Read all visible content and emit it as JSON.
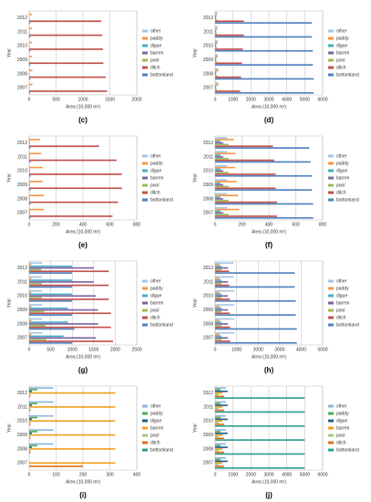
{
  "chart_data": [
    {
      "type": "bar",
      "caption": "(c)",
      "ylabel": "Year",
      "xlabel": "Area (10,000 m²)",
      "categories": [
        "2007",
        "2008",
        "2009",
        "2010",
        "2011",
        "2012"
      ],
      "xlim": [
        0,
        2000
      ],
      "xticks": [
        0,
        500,
        1000,
        1500,
        2000
      ],
      "grid": true,
      "series": [
        {
          "name": "bottomland",
          "color": "#4f81bd",
          "values": [
            20,
            20,
            20,
            20,
            20,
            20
          ]
        },
        {
          "name": "ditch",
          "color": "#c0504d",
          "values": [
            1450,
            1420,
            1380,
            1370,
            1360,
            1340
          ]
        },
        {
          "name": "pool",
          "color": "#9bbb59",
          "values": [
            10,
            10,
            10,
            10,
            10,
            10
          ]
        },
        {
          "name": "barren",
          "color": "#8064a2",
          "values": [
            5,
            5,
            5,
            5,
            5,
            5
          ]
        },
        {
          "name": "digue",
          "color": "#4bacc6",
          "values": [
            5,
            5,
            5,
            5,
            5,
            5
          ]
        },
        {
          "name": "paddy",
          "color": "#f79646",
          "values": [
            60,
            60,
            55,
            55,
            50,
            50
          ]
        },
        {
          "name": "other",
          "color": "#a7c4e5",
          "values": [
            10,
            10,
            10,
            10,
            10,
            10
          ]
        }
      ]
    },
    {
      "type": "bar",
      "caption": "(d)",
      "ylabel": "Year",
      "xlabel": "Area (10,000 m²)",
      "categories": [
        "2007",
        "2008",
        "2009",
        "2010",
        "2011",
        "2012"
      ],
      "xlim": [
        0,
        6000
      ],
      "xticks": [
        0,
        1000,
        2000,
        3000,
        4000,
        5000,
        6000
      ],
      "grid": true,
      "series": [
        {
          "name": "bottomland",
          "color": "#4f81bd",
          "values": [
            5500,
            5500,
            5450,
            5450,
            5400,
            5400
          ]
        },
        {
          "name": "ditch",
          "color": "#c0504d",
          "values": [
            1400,
            1450,
            1500,
            1550,
            1600,
            1600
          ]
        },
        {
          "name": "pool",
          "color": "#9bbb59",
          "values": [
            100,
            100,
            100,
            100,
            100,
            100
          ]
        },
        {
          "name": "barren",
          "color": "#8064a2",
          "values": [
            50,
            50,
            50,
            50,
            50,
            50
          ]
        },
        {
          "name": "digue",
          "color": "#4bacc6",
          "values": [
            80,
            80,
            80,
            80,
            80,
            80
          ]
        },
        {
          "name": "paddy",
          "color": "#f79646",
          "values": [
            200,
            200,
            150,
            150,
            120,
            100
          ]
        },
        {
          "name": "other",
          "color": "#a7c4e5",
          "values": [
            150,
            150,
            150,
            150,
            150,
            150
          ]
        }
      ]
    },
    {
      "type": "bar",
      "caption": "(e)",
      "ylabel": "Year",
      "xlabel": "Area (10,000 m²)",
      "categories": [
        "2007",
        "2008",
        "2009",
        "2010",
        "2011",
        "2012"
      ],
      "xlim": [
        0,
        800
      ],
      "xticks": [
        0,
        200,
        400,
        600,
        800
      ],
      "grid": true,
      "series": [
        {
          "name": "bottomland",
          "color": "#4f81bd",
          "values": [
            10,
            10,
            10,
            10,
            10,
            10
          ]
        },
        {
          "name": "ditch",
          "color": "#c0504d",
          "values": [
            620,
            660,
            690,
            690,
            650,
            520
          ]
        },
        {
          "name": "pool",
          "color": "#9bbb59",
          "values": [
            5,
            5,
            5,
            5,
            5,
            5
          ]
        },
        {
          "name": "barren",
          "color": "#8064a2",
          "values": [
            5,
            5,
            5,
            5,
            5,
            5
          ]
        },
        {
          "name": "digue",
          "color": "#4bacc6",
          "values": [
            5,
            5,
            5,
            5,
            5,
            5
          ]
        },
        {
          "name": "paddy",
          "color": "#f79646",
          "values": [
            110,
            110,
            100,
            100,
            90,
            80
          ]
        },
        {
          "name": "other",
          "color": "#a7c4e5",
          "values": [
            5,
            5,
            5,
            5,
            5,
            5
          ]
        }
      ]
    },
    {
      "type": "bar",
      "caption": "(f)",
      "ylabel": "Year",
      "xlabel": "Area (10,000 m²)",
      "categories": [
        "2007",
        "2008",
        "2009",
        "2010",
        "2011",
        "2012"
      ],
      "xlim": [
        0,
        800
      ],
      "xticks": [
        0,
        200,
        400,
        600,
        800
      ],
      "grid": true,
      "series": [
        {
          "name": "bottomland",
          "color": "#4f81bd",
          "values": [
            730,
            730,
            720,
            720,
            710,
            700
          ]
        },
        {
          "name": "ditch",
          "color": "#c0504d",
          "values": [
            460,
            460,
            450,
            450,
            440,
            430
          ]
        },
        {
          "name": "pool",
          "color": "#9bbb59",
          "values": [
            100,
            100,
            100,
            100,
            100,
            100
          ]
        },
        {
          "name": "barren",
          "color": "#8064a2",
          "values": [
            60,
            60,
            60,
            60,
            60,
            60
          ]
        },
        {
          "name": "digue",
          "color": "#4bacc6",
          "values": [
            40,
            40,
            40,
            40,
            40,
            40
          ]
        },
        {
          "name": "paddy",
          "color": "#f79646",
          "values": [
            180,
            170,
            160,
            150,
            150,
            140
          ]
        },
        {
          "name": "other",
          "color": "#a7c4e5",
          "values": [
            90,
            90,
            90,
            90,
            90,
            90
          ]
        }
      ]
    },
    {
      "type": "bar",
      "caption": "(g)",
      "ylabel": "Year",
      "xlabel": "Area (10,000 m²)",
      "categories": [
        "2007",
        "2008",
        "2009",
        "2010",
        "2011",
        "2012"
      ],
      "xlim": [
        0,
        2500
      ],
      "xticks": [
        0,
        500,
        1000,
        1500,
        2000,
        2500
      ],
      "grid": true,
      "series": [
        {
          "name": "bottomland",
          "color": "#4f81bd",
          "values": [
            1000,
            1050,
            1000,
            1000,
            1000,
            1000
          ]
        },
        {
          "name": "ditch",
          "color": "#c0504d",
          "values": [
            1950,
            1900,
            1900,
            1850,
            1850,
            1850
          ]
        },
        {
          "name": "pool",
          "color": "#9bbb59",
          "values": [
            400,
            380,
            350,
            300,
            300,
            280
          ]
        },
        {
          "name": "barren",
          "color": "#8064a2",
          "values": [
            1550,
            1600,
            1600,
            1550,
            1500,
            1500
          ]
        },
        {
          "name": "digue",
          "color": "#4bacc6",
          "values": [
            800,
            900,
            900,
            1000,
            1000,
            1000
          ]
        },
        {
          "name": "paddy",
          "color": "#f79646",
          "values": [
            50,
            50,
            50,
            50,
            50,
            50
          ]
        },
        {
          "name": "other",
          "color": "#a7c4e5",
          "values": [
            300,
            300,
            300,
            300,
            300,
            300
          ]
        }
      ]
    },
    {
      "type": "bar",
      "caption": "(h)",
      "ylabel": "Year",
      "xlabel": "Area (10,000 m²)",
      "categories": [
        "2007",
        "2008",
        "2009",
        "2010",
        "2011",
        "2012"
      ],
      "xlim": [
        0,
        5000
      ],
      "xticks": [
        0,
        1000,
        2000,
        3000,
        4000,
        5000
      ],
      "grid": true,
      "series": [
        {
          "name": "bottomland",
          "color": "#4f81bd",
          "values": [
            3800,
            3800,
            3750,
            3750,
            3700,
            3700
          ]
        },
        {
          "name": "ditch",
          "color": "#c0504d",
          "values": [
            700,
            700,
            680,
            680,
            660,
            650
          ]
        },
        {
          "name": "pool",
          "color": "#9bbb59",
          "values": [
            300,
            300,
            300,
            300,
            300,
            300
          ]
        },
        {
          "name": "barren",
          "color": "#8064a2",
          "values": [
            600,
            600,
            600,
            600,
            600,
            600
          ]
        },
        {
          "name": "digue",
          "color": "#4bacc6",
          "values": [
            300,
            300,
            300,
            300,
            300,
            300
          ]
        },
        {
          "name": "paddy",
          "color": "#f79646",
          "values": [
            200,
            200,
            200,
            200,
            200,
            200
          ]
        },
        {
          "name": "other",
          "color": "#a7c4e5",
          "values": [
            900,
            900,
            880,
            880,
            860,
            850
          ]
        }
      ]
    },
    {
      "type": "bar",
      "caption": "(i)",
      "ylabel": "Year",
      "xlabel": "Area (10,000 m²)",
      "categories": [
        "2007",
        "2008",
        "2009",
        "2010",
        "2011",
        "2012"
      ],
      "xlim": [
        0,
        400
      ],
      "xticks": [
        0,
        100,
        200,
        300,
        400
      ],
      "grid": true,
      "series": [
        {
          "name": "bottomland",
          "color": "#2e9e8f",
          "values": [
            0,
            0,
            0,
            0,
            0,
            0
          ]
        },
        {
          "name": "ditch",
          "color": "#e07020",
          "values": [
            200,
            5,
            5,
            5,
            5,
            5
          ]
        },
        {
          "name": "pool",
          "color": "#a0c878",
          "values": [
            0,
            5,
            5,
            5,
            5,
            5
          ]
        },
        {
          "name": "barren",
          "color": "#f0a020",
          "values": [
            320,
            320,
            320,
            320,
            320,
            320
          ]
        },
        {
          "name": "digue",
          "color": "#1f5f8b",
          "values": [
            0,
            10,
            10,
            10,
            10,
            10
          ]
        },
        {
          "name": "paddy",
          "color": "#4caf50",
          "values": [
            0,
            30,
            30,
            30,
            30,
            30
          ]
        },
        {
          "name": "other",
          "color": "#8fb4de",
          "values": [
            0,
            90,
            90,
            90,
            90,
            90
          ]
        }
      ]
    },
    {
      "type": "bar",
      "caption": "(j)",
      "ylabel": "Year",
      "xlabel": "Area (10,000 m²)",
      "categories": [
        "2007",
        "2008",
        "2009",
        "2010",
        "2011",
        "2012"
      ],
      "xlim": [
        0,
        6000
      ],
      "xticks": [
        0,
        1000,
        2000,
        3000,
        4000,
        5000,
        6000
      ],
      "grid": true,
      "series": [
        {
          "name": "bottomland",
          "color": "#2e9e8f",
          "values": [
            5000,
            5000,
            5000,
            5000,
            5000,
            5000
          ]
        },
        {
          "name": "ditch",
          "color": "#e07020",
          "values": [
            500,
            500,
            500,
            500,
            500,
            500
          ]
        },
        {
          "name": "pool",
          "color": "#a0c878",
          "values": [
            200,
            200,
            200,
            200,
            200,
            200
          ]
        },
        {
          "name": "barren",
          "color": "#f0a020",
          "values": [
            400,
            400,
            400,
            400,
            400,
            400
          ]
        },
        {
          "name": "digue",
          "color": "#1f5f8b",
          "values": [
            700,
            700,
            700,
            700,
            700,
            700
          ]
        },
        {
          "name": "paddy",
          "color": "#4caf50",
          "values": [
            300,
            300,
            300,
            300,
            300,
            300
          ]
        },
        {
          "name": "other",
          "color": "#8fb4de",
          "values": [
            600,
            600,
            600,
            600,
            600,
            600
          ]
        }
      ]
    }
  ]
}
